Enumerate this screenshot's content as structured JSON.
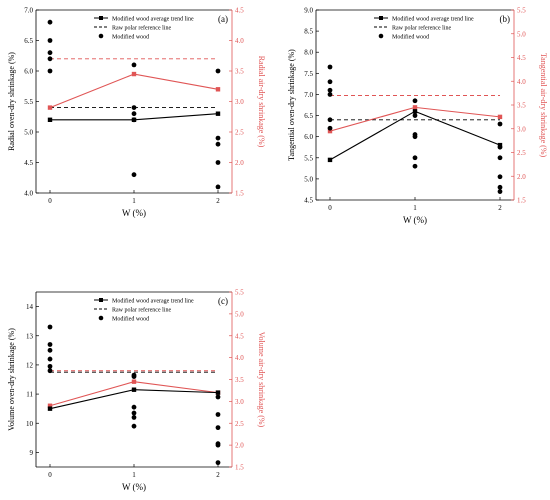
{
  "colors": {
    "black": "#000000",
    "red": "#e05555",
    "red_axis": "#e05555"
  },
  "chart_data": [
    {
      "type": "line",
      "panel_label": "(a)",
      "x": [
        0,
        1,
        2
      ],
      "xticks": [
        "0",
        "1",
        "2"
      ],
      "xlabel": "W (%)",
      "ylabel": "Radial oven-dry shrinkage (%)",
      "ylim": [
        4.0,
        7.0
      ],
      "yticks": [
        "4.0",
        "4.5",
        "5.0",
        "5.5",
        "6.0",
        "6.5",
        "7.0"
      ],
      "y2label": "Radial air-dry shrinkage (%)",
      "y2lim": [
        1.5,
        4.5
      ],
      "y2ticks": [
        "1.5",
        "2.0",
        "2.5",
        "3.0",
        "3.5",
        "4.0",
        "4.5"
      ],
      "legend": [
        "Modified wood average trend line",
        "Raw polar reference line",
        "Modified wood"
      ],
      "trend": [
        5.2,
        5.2,
        5.3
      ],
      "raw_ref": 5.4,
      "scatter": [
        {
          "x": 0,
          "y": 6.8
        },
        {
          "x": 0,
          "y": 6.5
        },
        {
          "x": 0,
          "y": 6.3
        },
        {
          "x": 0,
          "y": 6.2
        },
        {
          "x": 0,
          "y": 6.0
        },
        {
          "x": 1,
          "y": 6.1
        },
        {
          "x": 1,
          "y": 5.4
        },
        {
          "x": 1,
          "y": 5.3
        },
        {
          "x": 1,
          "y": 5.2
        },
        {
          "x": 1,
          "y": 4.3
        },
        {
          "x": 2,
          "y": 6.0
        },
        {
          "x": 2,
          "y": 4.9
        },
        {
          "x": 2,
          "y": 4.8
        },
        {
          "x": 2,
          "y": 4.5
        },
        {
          "x": 2,
          "y": 4.1
        }
      ],
      "air_dry_trend": [
        2.9,
        3.45,
        3.2
      ],
      "air_dry_raw_ref": 3.7
    },
    {
      "type": "line",
      "panel_label": "(b)",
      "x": [
        0,
        1,
        2
      ],
      "xticks": [
        "0",
        "1",
        "2"
      ],
      "xlabel": "W (%)",
      "ylabel": "Tangential oven-dry shrinkage (%)",
      "ylim": [
        4.5,
        9.0
      ],
      "yticks": [
        "4.5",
        "5.0",
        "5.5",
        "6.0",
        "6.5",
        "7.0",
        "7.5",
        "8.0",
        "8.5",
        "9.0"
      ],
      "y2label": "Tangential air-dry shrinkage (%)",
      "y2lim": [
        1.5,
        5.5
      ],
      "y2ticks": [
        "1.5",
        "2.0",
        "2.5",
        "3.0",
        "3.5",
        "4.0",
        "4.5",
        "5.0",
        "5.5"
      ],
      "legend": [
        "Modified wood average trend line",
        "Raw polar reference line",
        "Modified wood"
      ],
      "trend": [
        5.45,
        6.6,
        5.8
      ],
      "raw_ref": 6.4,
      "scatter": [
        {
          "x": 0,
          "y": 7.65
        },
        {
          "x": 0,
          "y": 7.3
        },
        {
          "x": 0,
          "y": 7.1
        },
        {
          "x": 0,
          "y": 7.0
        },
        {
          "x": 0,
          "y": 6.4
        },
        {
          "x": 0,
          "y": 6.2
        },
        {
          "x": 1,
          "y": 6.85
        },
        {
          "x": 1,
          "y": 6.5
        },
        {
          "x": 1,
          "y": 6.05
        },
        {
          "x": 1,
          "y": 6.0
        },
        {
          "x": 1,
          "y": 5.5
        },
        {
          "x": 1,
          "y": 5.3
        },
        {
          "x": 2,
          "y": 6.3
        },
        {
          "x": 2,
          "y": 5.75
        },
        {
          "x": 2,
          "y": 5.5
        },
        {
          "x": 2,
          "y": 5.05
        },
        {
          "x": 2,
          "y": 4.8
        },
        {
          "x": 2,
          "y": 4.7
        }
      ],
      "air_dry_trend": [
        2.95,
        3.45,
        3.25
      ],
      "air_dry_raw_ref": 3.7
    },
    {
      "type": "line",
      "panel_label": "(c)",
      "x": [
        0,
        1,
        2
      ],
      "xticks": [
        "0",
        "1",
        "2"
      ],
      "xlabel": "W (%)",
      "ylabel": "Volume oven-dry shrinkage (%)",
      "ylim": [
        8.5,
        14.5
      ],
      "yticks": [
        "9",
        "10",
        "11",
        "12",
        "13",
        "14"
      ],
      "y2label": "Volume air-dry shrinkage (%)",
      "y2lim": [
        1.5,
        5.5
      ],
      "y2ticks": [
        "1.5",
        "2.0",
        "2.5",
        "3.0",
        "3.5",
        "4.0",
        "4.5",
        "5.0",
        "5.5"
      ],
      "legend": [
        "Modified wood average trend line",
        "Raw polar reference line",
        "Modified wood"
      ],
      "trend": [
        10.5,
        11.15,
        11.05
      ],
      "raw_ref": 11.75,
      "scatter": [
        {
          "x": 0,
          "y": 13.3
        },
        {
          "x": 0,
          "y": 12.7
        },
        {
          "x": 0,
          "y": 12.5
        },
        {
          "x": 0,
          "y": 12.2
        },
        {
          "x": 0,
          "y": 11.95
        },
        {
          "x": 0,
          "y": 11.8
        },
        {
          "x": 1,
          "y": 11.65
        },
        {
          "x": 1,
          "y": 11.6
        },
        {
          "x": 1,
          "y": 10.55
        },
        {
          "x": 1,
          "y": 10.35
        },
        {
          "x": 1,
          "y": 10.2
        },
        {
          "x": 1,
          "y": 9.9
        },
        {
          "x": 2,
          "y": 10.9
        },
        {
          "x": 2,
          "y": 10.3
        },
        {
          "x": 2,
          "y": 9.85
        },
        {
          "x": 2,
          "y": 9.3
        },
        {
          "x": 2,
          "y": 9.25
        },
        {
          "x": 2,
          "y": 8.65
        }
      ],
      "air_dry_trend": [
        2.9,
        3.45,
        3.2
      ],
      "air_dry_raw_ref": 3.7
    }
  ]
}
